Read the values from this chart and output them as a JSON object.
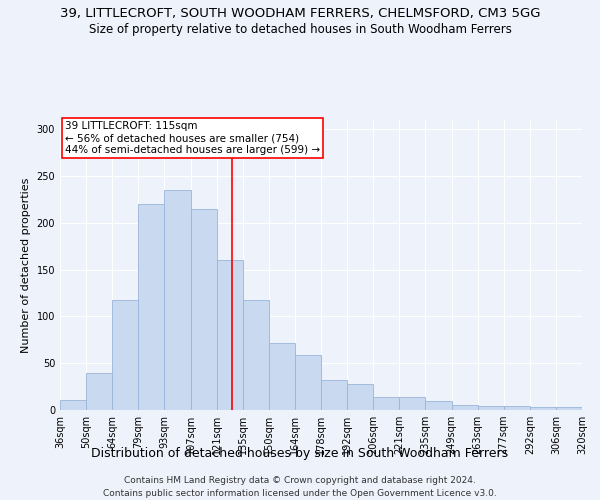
{
  "title_line1": "39, LITTLECROFT, SOUTH WOODHAM FERRERS, CHELMSFORD, CM3 5GG",
  "title_line2": "Size of property relative to detached houses in South Woodham Ferrers",
  "xlabel": "Distribution of detached houses by size in South Woodham Ferrers",
  "ylabel": "Number of detached properties",
  "categories": [
    "36sqm",
    "50sqm",
    "64sqm",
    "79sqm",
    "93sqm",
    "107sqm",
    "121sqm",
    "135sqm",
    "150sqm",
    "164sqm",
    "178sqm",
    "192sqm",
    "206sqm",
    "221sqm",
    "235sqm",
    "249sqm",
    "263sqm",
    "277sqm",
    "292sqm",
    "306sqm",
    "320sqm"
  ],
  "values": [
    11,
    40,
    118,
    220,
    235,
    215,
    160,
    118,
    72,
    59,
    32,
    28,
    14,
    14,
    10,
    5,
    4,
    4,
    3,
    3
  ],
  "bar_color": "#c9d9ef",
  "bar_edge_color": "#9ab5d9",
  "vline_color": "red",
  "annotation_text": "39 LITTLECROFT: 115sqm\n← 56% of detached houses are smaller (754)\n44% of semi-detached houses are larger (599) →",
  "annotation_box_color": "white",
  "annotation_box_edge": "red",
  "ylim": [
    0,
    310
  ],
  "yticks": [
    0,
    50,
    100,
    150,
    200,
    250,
    300
  ],
  "footer1": "Contains HM Land Registry data © Crown copyright and database right 2024.",
  "footer2": "Contains public sector information licensed under the Open Government Licence v3.0.",
  "bg_color": "#eef2fb",
  "plot_bg_color": "#eef2fb",
  "title_fontsize": 9.5,
  "subtitle_fontsize": 8.5,
  "xlabel_fontsize": 9,
  "ylabel_fontsize": 8,
  "tick_fontsize": 7,
  "footer_fontsize": 6.5,
  "annotation_fontsize": 7.5
}
